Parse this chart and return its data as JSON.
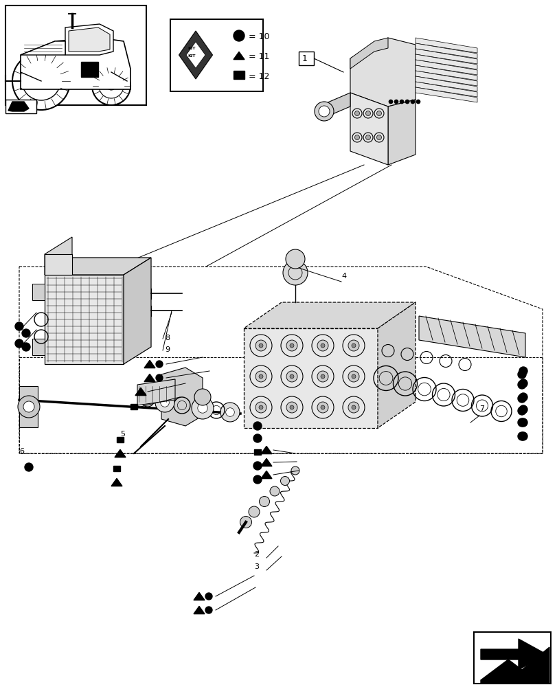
{
  "bg_color": "#ffffff",
  "figsize": [
    8.12,
    10.0
  ],
  "dpi": 100
}
